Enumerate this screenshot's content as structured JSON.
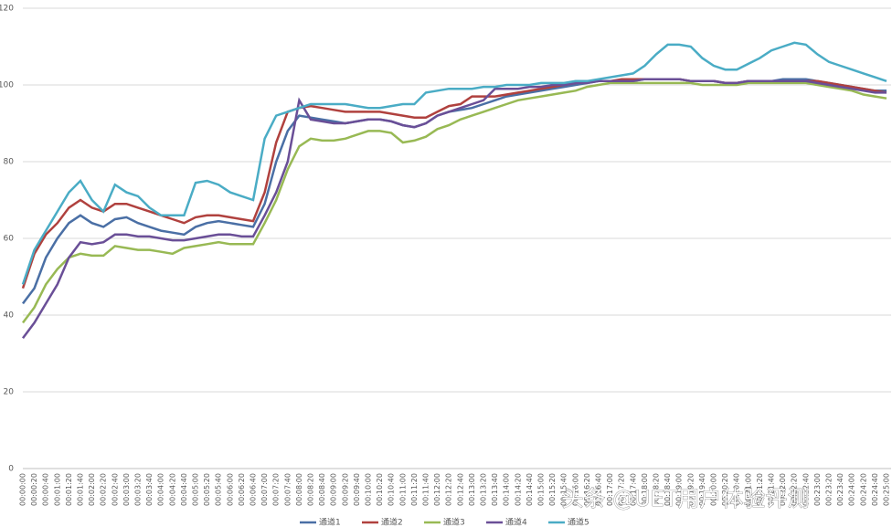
{
  "chart_data": {
    "type": "line",
    "categories": [
      "00:00:00",
      "00:00:20",
      "00:00:40",
      "00:01:00",
      "00:01:20",
      "00:01:40",
      "00:02:00",
      "00:02:20",
      "00:02:40",
      "00:03:00",
      "00:03:20",
      "00:03:40",
      "00:04:00",
      "00:04:20",
      "00:04:40",
      "00:05:00",
      "00:05:20",
      "00:05:40",
      "00:06:00",
      "00:06:20",
      "00:06:40",
      "00:07:00",
      "00:07:20",
      "00:07:40",
      "00:08:00",
      "00:08:20",
      "00:08:40",
      "00:09:00",
      "00:09:20",
      "00:09:40",
      "00:10:00",
      "00:10:20",
      "00:10:40",
      "00:11:00",
      "00:11:20",
      "00:11:40",
      "00:12:00",
      "00:12:20",
      "00:12:40",
      "00:13:00",
      "00:13:20",
      "00:13:40",
      "00:14:00",
      "00:14:20",
      "00:14:40",
      "00:15:00",
      "00:15:20",
      "00:15:40",
      "00:16:00",
      "00:16:20",
      "00:16:40",
      "00:17:00",
      "00:17:20",
      "00:17:40",
      "00:18:00",
      "00:18:20",
      "00:18:40",
      "00:19:00",
      "00:19:20",
      "00:19:40",
      "00:20:00",
      "00:20:20",
      "00:20:40",
      "00:21:00",
      "00:21:20",
      "00:21:40",
      "00:22:00",
      "00:22:20",
      "00:22:40",
      "00:23:00",
      "00:23:20",
      "00:23:40",
      "00:24:00",
      "00:24:20",
      "00:24:40",
      "00:25:00"
    ],
    "series": [
      {
        "name": "通道1",
        "color": "#4a6fa5",
        "values": [
          43,
          47,
          55,
          60,
          64,
          66,
          64,
          63,
          65,
          65.5,
          64,
          63,
          62,
          61.5,
          61,
          63,
          64,
          64.5,
          64,
          63.5,
          63,
          69,
          80,
          88,
          92,
          91.5,
          91,
          90.5,
          90,
          90.5,
          91,
          91,
          90.5,
          89.5,
          89,
          90,
          92,
          93,
          93.5,
          94,
          95,
          96,
          97,
          97.5,
          98,
          98.5,
          99,
          99.5,
          100,
          100.5,
          101,
          101,
          101,
          101,
          101.5,
          101.5,
          101.5,
          101.5,
          101,
          101,
          101,
          100.5,
          100.5,
          101,
          101,
          101,
          101.5,
          101.5,
          101.5,
          101,
          100.5,
          100,
          99.5,
          99,
          98.5,
          98.5
        ]
      },
      {
        "name": "通道2",
        "color": "#b0413e",
        "values": [
          47,
          56,
          61,
          64,
          68,
          70,
          68,
          67,
          69,
          69,
          68,
          67,
          66,
          65,
          64,
          65.5,
          66,
          66,
          65.5,
          65,
          64.5,
          72,
          85,
          93,
          94,
          94.5,
          94,
          93.5,
          93,
          93,
          93,
          93,
          92.5,
          92,
          91.5,
          91.5,
          93,
          94.5,
          95,
          97,
          97,
          97,
          97.5,
          98,
          98.5,
          99,
          99.5,
          100,
          100.5,
          101,
          101,
          101,
          101.5,
          101.5,
          101.5,
          101.5,
          101.5,
          101.5,
          101,
          101,
          101,
          100.5,
          100.5,
          101,
          101,
          101,
          101,
          101,
          101,
          101,
          100.5,
          100,
          99.5,
          99,
          98.5,
          98
        ]
      },
      {
        "name": "通道3",
        "color": "#98b954",
        "values": [
          38,
          42,
          48,
          52,
          55,
          56,
          55.5,
          55.5,
          58,
          57.5,
          57,
          57,
          56.5,
          56,
          57.5,
          58,
          58.5,
          59,
          58.5,
          58.5,
          58.5,
          64,
          70,
          78,
          84,
          86,
          85.5,
          85.5,
          86,
          87,
          88,
          88,
          87.5,
          85,
          85.5,
          86.5,
          88.5,
          89.5,
          91,
          92,
          93,
          94,
          95,
          96,
          96.5,
          97,
          97.5,
          98,
          98.5,
          99.5,
          100,
          100.5,
          100.5,
          100.5,
          100.5,
          100.5,
          100.5,
          100.5,
          100.5,
          100,
          100,
          100,
          100,
          100.5,
          100.5,
          100.5,
          100.5,
          100.5,
          100.5,
          100,
          99.5,
          99,
          98.5,
          97.5,
          97,
          96.5
        ]
      },
      {
        "name": "通道4",
        "color": "#6a4f97",
        "values": [
          34,
          38,
          43,
          48,
          55,
          59,
          58.5,
          59,
          61,
          61,
          60.5,
          60.5,
          60,
          59.5,
          59.5,
          60,
          60.5,
          61,
          61,
          60.5,
          60.5,
          66,
          72,
          80,
          96,
          91,
          90.5,
          90,
          90,
          90.5,
          91,
          91,
          90.5,
          89.5,
          89,
          90,
          92,
          93,
          94,
          95,
          96,
          99,
          99,
          99,
          99.5,
          99.5,
          100,
          100,
          100.5,
          100.5,
          101,
          101,
          101,
          101,
          101.5,
          101.5,
          101.5,
          101.5,
          101,
          101,
          101,
          100.5,
          100.5,
          101,
          101,
          101,
          101,
          101,
          101,
          100.5,
          100,
          99.5,
          99,
          98.5,
          98,
          98
        ]
      },
      {
        "name": "通道5",
        "color": "#4aacc5",
        "values": [
          48,
          57,
          62,
          67,
          72,
          75,
          70,
          67,
          74,
          72,
          71,
          68,
          66,
          66,
          66,
          74.5,
          75,
          74,
          72,
          71,
          70,
          86,
          92,
          93,
          94,
          95,
          95,
          95,
          95,
          94.5,
          94,
          94,
          94.5,
          95,
          95,
          98,
          98.5,
          99,
          99,
          99,
          99.5,
          99.5,
          100,
          100,
          100,
          100.5,
          100.5,
          100.5,
          101,
          101,
          101.5,
          102,
          102.5,
          103,
          105,
          108,
          110.5,
          110.5,
          110,
          107,
          105,
          104,
          104,
          105.5,
          107,
          109,
          110,
          111,
          110.5,
          108,
          106,
          105,
          104,
          103,
          102,
          101
        ]
      }
    ],
    "ylim": [
      0,
      120
    ],
    "yticks": [
      0,
      20,
      40,
      60,
      80,
      100,
      120
    ],
    "grid": true,
    "legend": "bottom",
    "watermark": "头条 @UET用户体验评测"
  }
}
